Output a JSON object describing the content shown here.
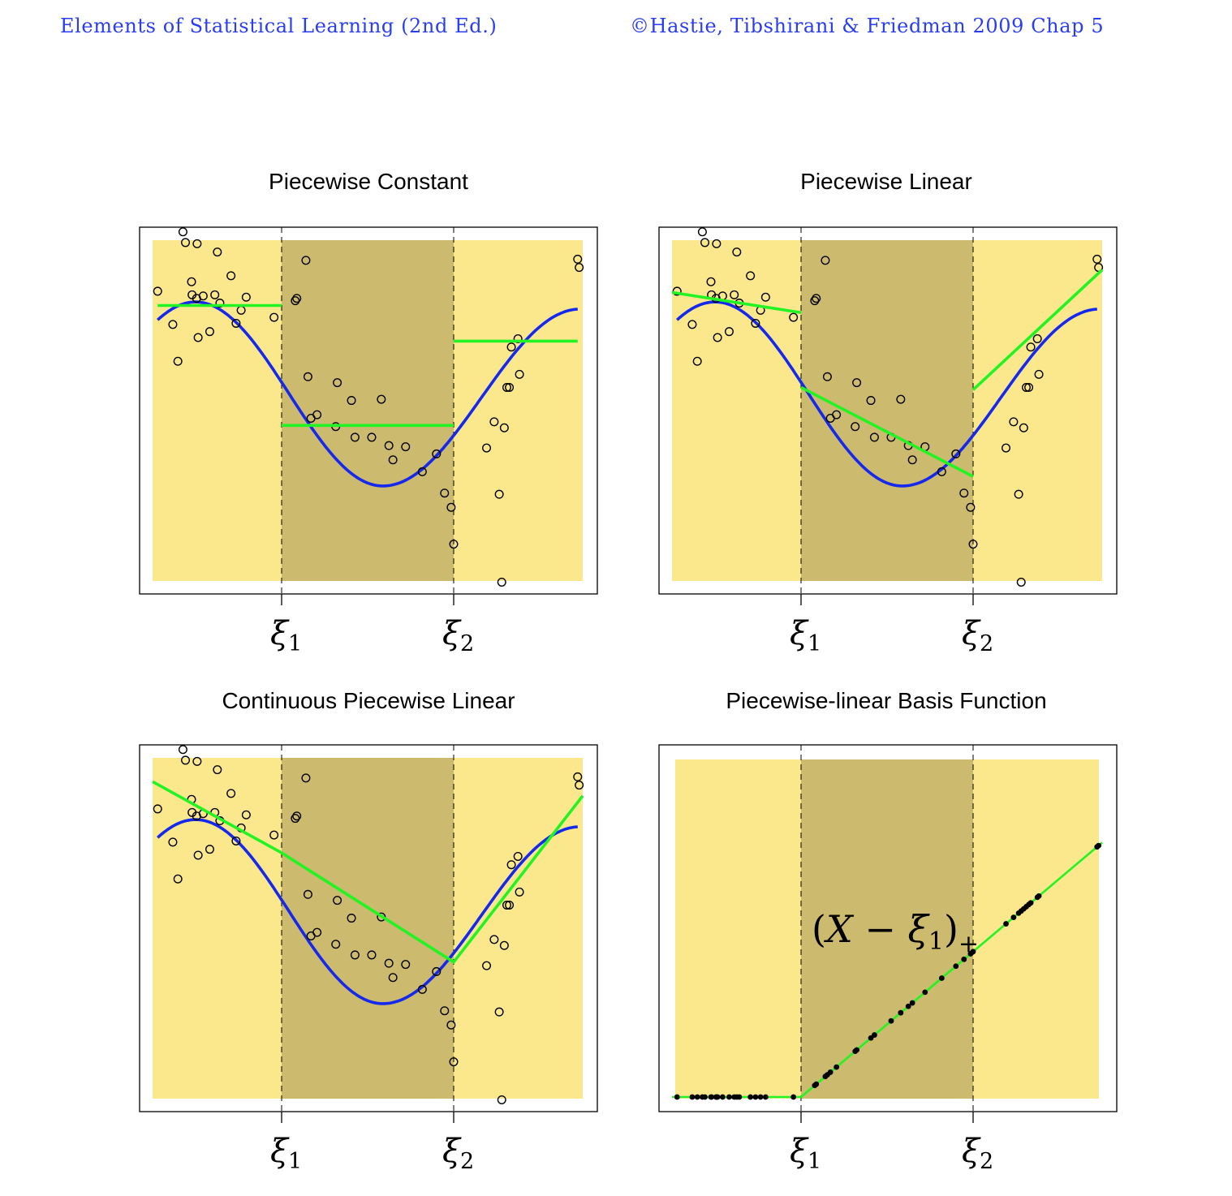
{
  "header": {
    "left": "Elements of Statistical Learning (2nd Ed.)",
    "right": "©Hastie, Tibshirani & Friedman 2009  Chap 5"
  },
  "colors": {
    "region_outer": "#fce88c",
    "region_middle": "#ccbb6e",
    "true_curve": "#1428ee",
    "fit_line": "#22f322",
    "points": "#000000",
    "header_text": "#2a3df0"
  },
  "chart_data": [
    {
      "type": "scatter",
      "title": "Piecewise Constant",
      "knots": [
        {
          "label": "ξ",
          "sub": "1",
          "x": 0.33
        },
        {
          "label": "ξ",
          "sub": "2",
          "x": 0.67
        }
      ],
      "xlim": [
        0.075,
        0.925
      ],
      "ylim": [
        -1.57,
        1.3
      ],
      "true_curve": "sin(2.8*(x-0.33)+pi)*0.77 ... (shared, plotted as blue)",
      "series": [
        {
          "x": [
            0.085,
            0.115,
            0.125,
            0.135,
            0.14,
            0.152,
            0.153,
            0.162,
            0.163,
            0.165,
            0.175,
            0.188,
            0.198,
            0.203,
            0.208,
            0.23,
            0.24,
            0.25,
            0.26,
            0.315,
            0.357,
            0.36,
            0.378,
            0.382,
            0.388,
            0.4,
            0.437,
            0.44,
            0.468,
            0.475,
            0.508,
            0.527,
            0.542,
            0.55,
            0.575,
            0.608,
            0.636,
            0.652,
            0.665,
            0.67,
            0.735,
            0.75,
            0.76,
            0.765,
            0.77,
            0.775,
            0.78,
            0.784,
            0.797,
            0.8,
            0.915,
            0.918
          ],
          "y": [
            0.87,
            0.59,
            0.28,
            1.37,
            1.28,
            0.95,
            0.84,
            0.81,
            1.27,
            0.48,
            0.83,
            0.53,
            0.84,
            1.2,
            0.77,
            1.0,
            0.6,
            0.71,
            0.82,
            0.65,
            0.79,
            0.81,
            1.13,
            0.15,
            -0.2,
            -0.17,
            -0.27,
            0.1,
            -0.05,
            -0.36,
            -0.36,
            -0.04,
            -0.43,
            -0.55,
            -0.44,
            -0.65,
            -0.5,
            -0.83,
            -0.95,
            -1.26,
            -0.45,
            -0.23,
            -0.84,
            -1.58,
            -0.28,
            0.06,
            0.06,
            0.4,
            0.47,
            0.17,
            1.14,
            1.07
          ],
          "name": ""
        }
      ],
      "fit": {
        "type": "constant",
        "levels": [
          0.75,
          -0.26,
          0.45
        ]
      }
    },
    {
      "type": "scatter",
      "title": "Piecewise Linear",
      "fit": {
        "type": "linear",
        "segments": [
          [
            [
              0.075,
              0.86
            ],
            [
              0.33,
              0.69
            ]
          ],
          [
            [
              0.33,
              0.06
            ],
            [
              0.67,
              -0.69
            ]
          ],
          [
            [
              0.67,
              0.04
            ],
            [
              0.925,
              1.05
            ]
          ]
        ]
      }
    },
    {
      "type": "scatter",
      "title": "Continuous Piecewise Linear",
      "fit": {
        "type": "continuous",
        "points": [
          [
            0.075,
            1.1
          ],
          [
            0.33,
            0.5
          ],
          [
            0.67,
            -0.42
          ],
          [
            0.925,
            0.98
          ]
        ]
      }
    },
    {
      "type": "line",
      "title": "Piecewise-linear Basis Function",
      "annotation": {
        "main": "(X − ξ",
        "sub": "1",
        "close": ")",
        "plus": "+"
      },
      "fit": {
        "type": "basis",
        "points": [
          [
            0.075,
            0
          ],
          [
            0.33,
            0
          ],
          [
            0.925,
            1.12
          ]
        ]
      }
    }
  ]
}
